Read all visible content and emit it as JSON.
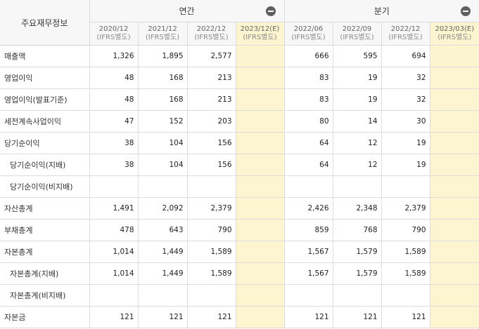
{
  "header": {
    "title": "주요재무정보",
    "annual_group": "연간",
    "quarter_group": "분기",
    "annual_periods": [
      {
        "period": "2020/12",
        "basis": "(IFRS별도)",
        "estimate": false
      },
      {
        "period": "2021/12",
        "basis": "(IFRS별도)",
        "estimate": false
      },
      {
        "period": "2022/12",
        "basis": "(IFRS별도)",
        "estimate": false
      },
      {
        "period": "2023/12(E)",
        "basis": "(IFRS별도)",
        "estimate": true
      }
    ],
    "quarter_periods": [
      {
        "period": "2022/06",
        "basis": "(IFRS별도)",
        "estimate": false
      },
      {
        "period": "2022/09",
        "basis": "(IFRS별도)",
        "estimate": false
      },
      {
        "period": "2022/12",
        "basis": "(IFRS별도)",
        "estimate": false
      },
      {
        "period": "2023/03(E)",
        "basis": "(IFRS별도)",
        "estimate": true
      }
    ]
  },
  "rows": [
    {
      "label": "매출액",
      "indent": false,
      "annual": [
        "1,326",
        "1,895",
        "2,577",
        ""
      ],
      "quarter": [
        "666",
        "595",
        "694",
        ""
      ]
    },
    {
      "label": "영업이익",
      "indent": false,
      "annual": [
        "48",
        "168",
        "213",
        ""
      ],
      "quarter": [
        "83",
        "19",
        "32",
        ""
      ]
    },
    {
      "label": "영업이익(발표기준)",
      "indent": false,
      "annual": [
        "48",
        "168",
        "213",
        ""
      ],
      "quarter": [
        "83",
        "19",
        "32",
        ""
      ]
    },
    {
      "label": "세전계속사업이익",
      "indent": false,
      "annual": [
        "47",
        "152",
        "203",
        ""
      ],
      "quarter": [
        "80",
        "14",
        "30",
        ""
      ]
    },
    {
      "label": "당기순이익",
      "indent": false,
      "annual": [
        "38",
        "104",
        "156",
        ""
      ],
      "quarter": [
        "64",
        "12",
        "19",
        ""
      ]
    },
    {
      "label": "당기순이익(지배)",
      "indent": true,
      "annual": [
        "38",
        "104",
        "156",
        ""
      ],
      "quarter": [
        "64",
        "12",
        "19",
        ""
      ]
    },
    {
      "label": "당기순이익(비지배)",
      "indent": true,
      "annual": [
        "",
        "",
        "",
        ""
      ],
      "quarter": [
        "",
        "",
        "",
        ""
      ]
    },
    {
      "label": "자산총계",
      "indent": false,
      "annual": [
        "1,491",
        "2,092",
        "2,379",
        ""
      ],
      "quarter": [
        "2,426",
        "2,348",
        "2,379",
        ""
      ]
    },
    {
      "label": "부채총계",
      "indent": false,
      "annual": [
        "478",
        "643",
        "790",
        ""
      ],
      "quarter": [
        "859",
        "768",
        "790",
        ""
      ]
    },
    {
      "label": "자본총계",
      "indent": false,
      "annual": [
        "1,014",
        "1,449",
        "1,589",
        ""
      ],
      "quarter": [
        "1,567",
        "1,579",
        "1,589",
        ""
      ]
    },
    {
      "label": "자본총계(지배)",
      "indent": true,
      "annual": [
        "1,014",
        "1,449",
        "1,589",
        ""
      ],
      "quarter": [
        "1,567",
        "1,579",
        "1,589",
        ""
      ]
    },
    {
      "label": "자본총계(비지배)",
      "indent": true,
      "annual": [
        "",
        "",
        "",
        ""
      ],
      "quarter": [
        "",
        "",
        "",
        ""
      ]
    },
    {
      "label": "자본금",
      "indent": false,
      "annual": [
        "121",
        "121",
        "121",
        ""
      ],
      "quarter": [
        "121",
        "121",
        "121",
        ""
      ]
    }
  ],
  "colors": {
    "header_bg": "#f7f7f7",
    "estimate_bg": "#fcf5cf",
    "grid": "#dcdcdc",
    "button": "#5f5f5f"
  }
}
